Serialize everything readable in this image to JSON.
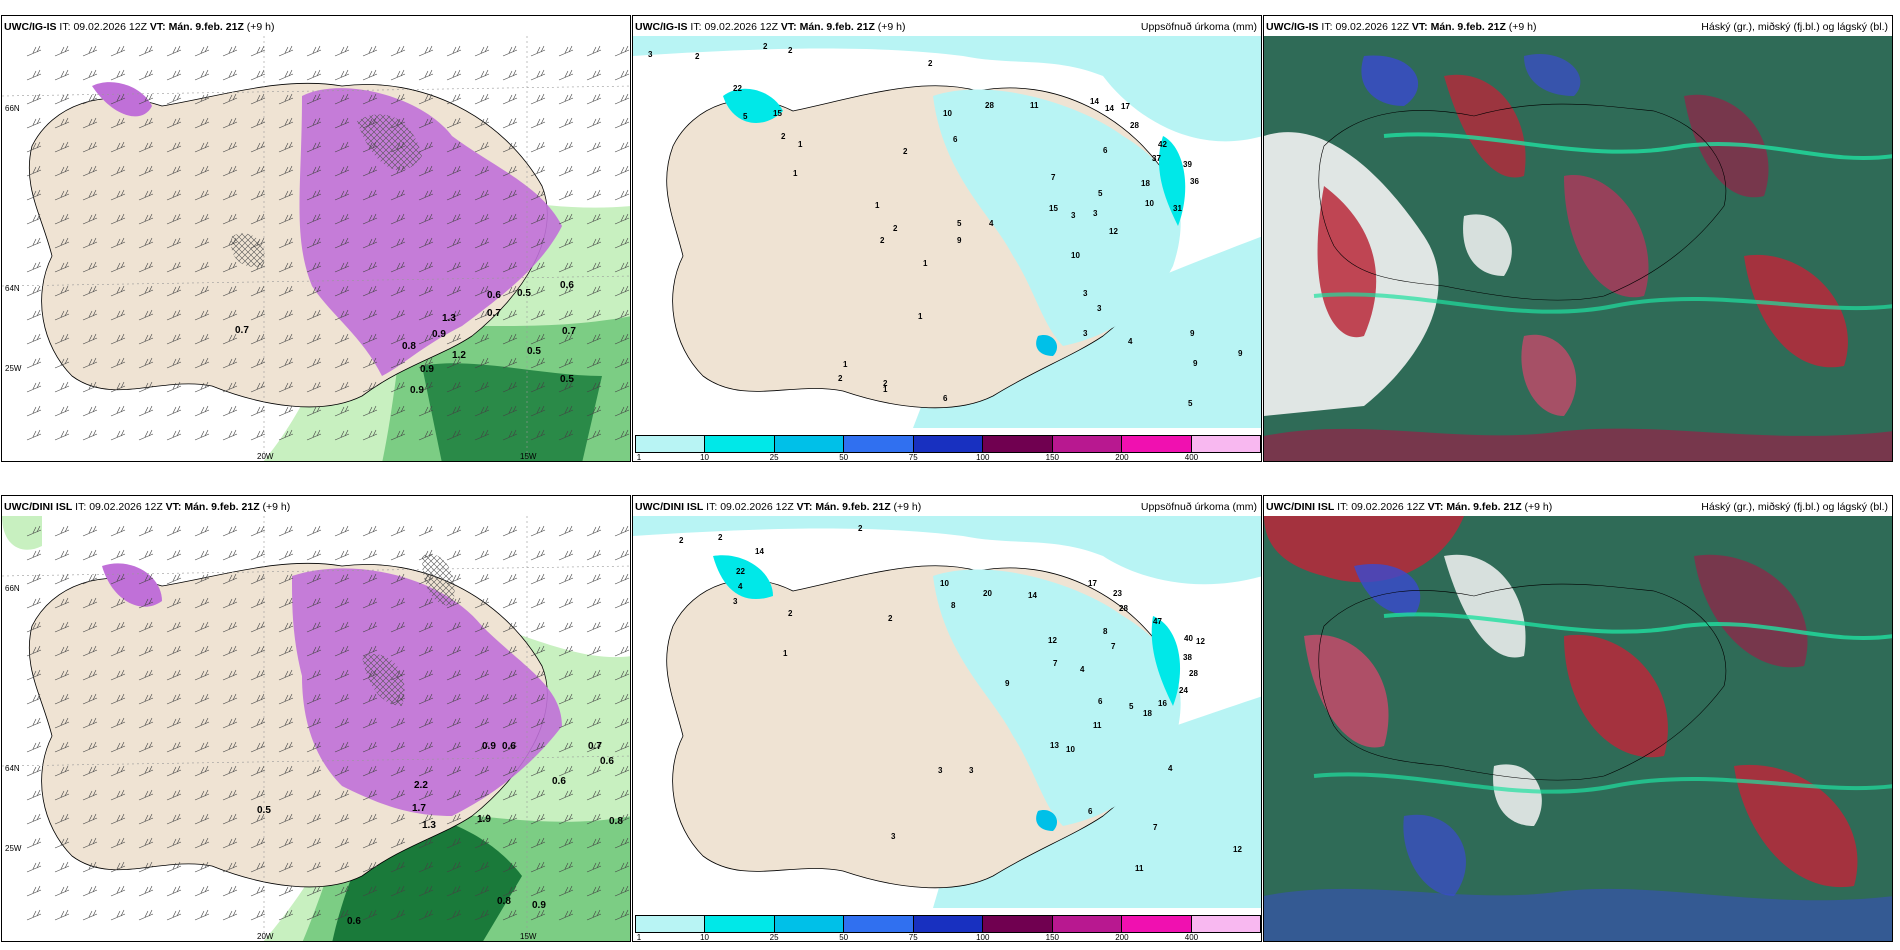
{
  "panels": [
    {
      "model": "UWC/IG-IS",
      "it_label": "IT:",
      "it_value": "09.02.2026 12Z",
      "vt_label": "VT:",
      "vt_value": "Mán. 9.feb. 21Z",
      "lead": "(+9 h)",
      "right_title": "",
      "grid_labels": {
        "lat66": "66N",
        "lat64": "64N",
        "lon25": "25W",
        "lon20": "20W",
        "lon15": "15W"
      },
      "values": [
        "0.7",
        "0.5",
        "0.6",
        "0.7",
        "0.9",
        "0.5",
        "0.7",
        "1.2",
        "0.9",
        "0.8",
        "0.6",
        "1.3",
        "0.5",
        "0.9"
      ]
    },
    {
      "model": "UWC/IG-IS",
      "it_label": "IT:",
      "it_value": "09.02.2026 12Z",
      "vt_label": "VT:",
      "vt_value": "Mán. 9.feb. 21Z",
      "lead": "(+9 h)",
      "right_title": "Uppsöfnuð úrkoma (mm)",
      "values": [
        "3",
        "2",
        "2",
        "2",
        "2",
        "22",
        "15",
        "5",
        "2",
        "1",
        "1",
        "2",
        "1",
        "2",
        "1",
        "2",
        "1",
        "6",
        "10",
        "28",
        "11",
        "14",
        "14",
        "17",
        "28",
        "42",
        "37",
        "39",
        "36",
        "18",
        "10",
        "31",
        "6",
        "5",
        "3",
        "3",
        "7",
        "15",
        "4",
        "12",
        "10",
        "9",
        "5",
        "3",
        "3",
        "4",
        "9",
        "3",
        "2",
        "1",
        "1",
        "2",
        "6",
        "9",
        "5",
        "9"
      ]
    },
    {
      "model": "UWC/IG-IS",
      "it_label": "IT:",
      "it_value": "09.02.2026 12Z",
      "vt_label": "VT:",
      "vt_value": "Mán. 9.feb. 21Z",
      "lead": "(+9 h)",
      "right_title": "Háský (gr.), miðský (fj.bl.) og lágský (bl.)"
    },
    {
      "model": "UWC/DINI ISL",
      "it_label": "IT:",
      "it_value": "09.02.2026 12Z",
      "vt_label": "VT:",
      "vt_value": "Mán. 9.feb. 21Z",
      "lead": "(+9 h)",
      "right_title": "",
      "grid_labels": {
        "lat66": "66N",
        "lat64": "64N",
        "lon25": "25W",
        "lon20": "20W",
        "lon15": "15W"
      },
      "values": [
        "0.5",
        "0.6",
        "2.2",
        "1.7",
        "1.9",
        "1.3",
        "0.6",
        "0.8",
        "0.9",
        "0.6",
        "0.7",
        "0.6",
        "0.8",
        "0.9"
      ]
    },
    {
      "model": "UWC/DINI ISL",
      "it_label": "IT:",
      "it_value": "09.02.2026 12Z",
      "vt_label": "VT:",
      "vt_value": "Mán. 9.feb. 21Z",
      "lead": "(+9 h)",
      "right_title": "Uppsöfnuð úrkoma (mm)",
      "values": [
        "2",
        "2",
        "2",
        "14",
        "22",
        "4",
        "3",
        "2",
        "1",
        "10",
        "8",
        "20",
        "14",
        "17",
        "23",
        "28",
        "47",
        "40",
        "38",
        "28",
        "24",
        "16",
        "18",
        "12",
        "8",
        "7",
        "4",
        "7",
        "6",
        "5",
        "3",
        "3",
        "2",
        "13",
        "11",
        "12",
        "9",
        "10",
        "4",
        "6",
        "7",
        "11",
        "12",
        "3"
      ]
    },
    {
      "model": "UWC/DINI ISL",
      "it_label": "IT:",
      "it_value": "09.02.2026 12Z",
      "vt_label": "VT:",
      "vt_value": "Mán. 9.feb. 21Z",
      "lead": "(+9 h)",
      "right_title": "Háský (gr.), miðský (fj.bl.) og lágský (bl.)"
    }
  ],
  "colorbar": {
    "colors": [
      "#b8f4f4",
      "#00e8e8",
      "#00c0e8",
      "#3070f0",
      "#1830c0",
      "#700050",
      "#b81890",
      "#f010b0",
      "#f8b8f0"
    ],
    "ticks": [
      "1",
      "10",
      "25",
      "50",
      "75",
      "100",
      "150",
      "200",
      "400"
    ]
  },
  "palette": {
    "land": "#efe3d3",
    "precip_purple": "#c070d8",
    "green_light": "#c8f0c0",
    "green_dark": "#1a7a3a",
    "cyan_light": "#b8f4f4",
    "cloud_high": "#2f6b57",
    "cloud_mid": "#a83a5a",
    "cloud_low": "#3a4ad0"
  }
}
